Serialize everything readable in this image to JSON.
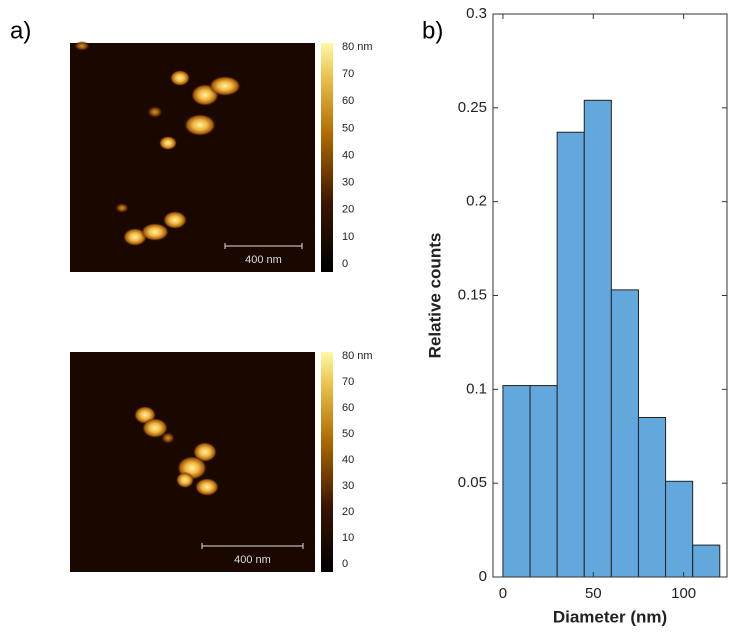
{
  "panel_labels": [
    "a)",
    "b)"
  ],
  "afm_images": [
    {
      "colorbar_labels": [
        "80 nm",
        "70",
        "60",
        "50",
        "40",
        "30",
        "20",
        "10",
        "0"
      ],
      "scale_bar": "400 nm"
    },
    {
      "colorbar_labels": [
        "80 nm",
        "70",
        "60",
        "50",
        "40",
        "30",
        "20",
        "10",
        "0"
      ],
      "scale_bar": "400 nm"
    }
  ],
  "chart_data": {
    "type": "histogram",
    "xlabel": "Diameter (nm)",
    "ylabel": "Relative counts",
    "bins": [
      0,
      15,
      30,
      45,
      60,
      75,
      90,
      105,
      120
    ],
    "values": [
      0.102,
      0.102,
      0.237,
      0.254,
      0.153,
      0.085,
      0.051,
      0.017
    ],
    "color": "#62a8dc",
    "xlim": [
      -5.5,
      124
    ],
    "ylim": [
      0,
      0.3
    ],
    "xticks": [
      0,
      50,
      100
    ],
    "yticks": [
      0,
      0.05,
      0.1,
      0.15,
      0.2,
      0.25,
      0.3
    ]
  }
}
